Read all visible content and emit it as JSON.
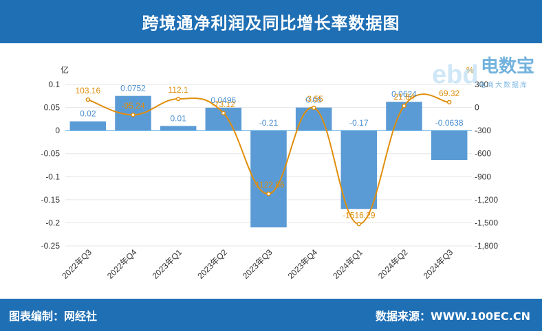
{
  "header": {
    "title": "跨境通净利润及同比增长率数据图"
  },
  "footer": {
    "editor": "图表编制：网经社",
    "source": "数据来源：WWW.100EC.CN"
  },
  "watermark": {
    "brand": "电数宝",
    "sub": "电商大数据库",
    "logo_text": "ebd"
  },
  "colors": {
    "header": "#1f6fb5",
    "bar": "#5b9bd5",
    "line": "#e08e0b",
    "label_bar": "#4a8fd0",
    "label_line": "#e08e0b"
  },
  "chart_data": {
    "type": "bar",
    "categories": [
      "2022年Q3",
      "2022年Q4",
      "2023年Q1",
      "2023年Q2",
      "2023年Q3",
      "2023年Q4",
      "2024年Q1",
      "2024年Q2",
      "2024年Q3"
    ],
    "series": [
      {
        "kind": "bar",
        "axis": "left",
        "values": [
          0.02,
          0.0752,
          0.01,
          0.0496,
          -0.21,
          0.05,
          -0.17,
          0.0624,
          -0.0638
        ],
        "labels": [
          "0.02",
          "0.0752",
          "0.01",
          "0.0496",
          "-0.21",
          "0.05",
          "-0.17",
          "0.0624",
          "-0.0638"
        ]
      },
      {
        "kind": "line",
        "axis": "right",
        "values": [
          103.16,
          -95.24,
          112.1,
          -73.12,
          -1122.86,
          -3.55,
          -1516.29,
          21.84,
          69.32
        ],
        "labels": [
          "103.16",
          "-95.24",
          "112.1",
          "-73.12",
          "-1122.86",
          "-3.55",
          "-1516.29",
          "21.84",
          "69.32"
        ]
      }
    ],
    "ylabel": "亿",
    "ylabel_right": "%",
    "ylim": [
      -0.25,
      0.1
    ],
    "ylim_right": [
      -1800,
      300
    ],
    "yticks": [
      "0.1",
      "0.05",
      "0",
      "-0.05",
      "-0.1",
      "-0.15",
      "-0.2",
      "-0.25"
    ],
    "yticks_right": [
      "300",
      "0",
      "-300",
      "-600",
      "-900",
      "-1,200",
      "-1,500",
      "-1,800"
    ],
    "grid": true
  }
}
